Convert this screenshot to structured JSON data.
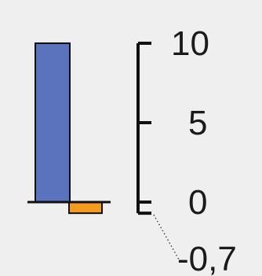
{
  "chart_data": {
    "type": "bar",
    "categories": [
      "",
      ""
    ],
    "values": [
      10,
      -0.7
    ],
    "colors": [
      "#5b72bd",
      "#f39a1f"
    ],
    "axis": {
      "ylim": [
        -0.7,
        10
      ],
      "ticks": [
        {
          "value": 10,
          "label": "10"
        },
        {
          "value": 5,
          "label": "5"
        },
        {
          "value": 0,
          "label": "0"
        },
        {
          "value": -0.7,
          "label": "-0,7"
        }
      ]
    },
    "grid": false,
    "legend": "none"
  }
}
